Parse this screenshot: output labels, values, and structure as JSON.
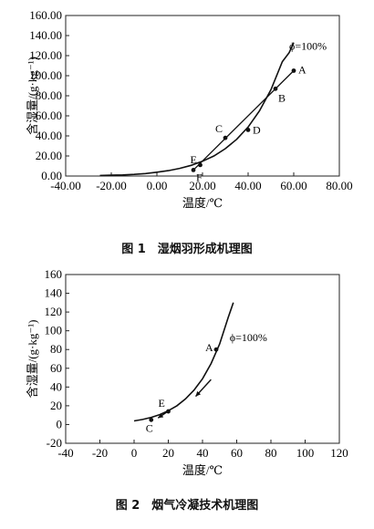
{
  "chart_data": [
    {
      "type": "line",
      "xlabel": "温度/℃",
      "ylabel": "含湿量/(g·kg⁻¹)",
      "xlim": [
        -40,
        80
      ],
      "ylim": [
        0,
        160
      ],
      "x_ticks": [
        "-40.00",
        "-20.00",
        "0.00",
        "20.00",
        "40.00",
        "60.00",
        "80.00"
      ],
      "y_ticks": [
        "0.00",
        "20.00",
        "40.00",
        "60.00",
        "80.00",
        "100.00",
        "120.00",
        "140.00",
        "160.00"
      ],
      "curve_label": "ϕ=100%",
      "curve": {
        "x": [
          -25,
          -20,
          -15,
          -10,
          -5,
          0,
          5,
          10,
          15,
          20,
          25,
          30,
          35,
          40,
          45,
          50,
          55,
          58,
          60
        ],
        "y": [
          0.5,
          0.8,
          1.1,
          1.6,
          2.5,
          3.8,
          5.4,
          7.6,
          10.6,
          14.7,
          20.0,
          27.3,
          36.6,
          48.8,
          65.0,
          86.0,
          114.0,
          123.0,
          133.0
        ]
      },
      "line": {
        "from": [
          16,
          6
        ],
        "to": [
          60,
          105
        ]
      },
      "points": [
        {
          "label": "A",
          "x": 60,
          "y": 105
        },
        {
          "label": "B",
          "x": 52,
          "y": 87
        },
        {
          "label": "C",
          "x": 30,
          "y": 38
        },
        {
          "label": "D",
          "x": 40,
          "y": 46
        },
        {
          "label": "E",
          "x": 19,
          "y": 11
        },
        {
          "label": "F",
          "x": 16,
          "y": 6
        }
      ],
      "caption": "图 1　湿烟羽形成机理图"
    },
    {
      "type": "line",
      "xlabel": "温度/℃",
      "ylabel": "含湿量/(g·kg⁻¹)",
      "xlim": [
        -40,
        120
      ],
      "ylim": [
        -20,
        160
      ],
      "x_ticks": [
        "-40",
        "-20",
        "0",
        "20",
        "40",
        "60",
        "80",
        "100",
        "120"
      ],
      "y_ticks": [
        "-20",
        "0",
        "20",
        "40",
        "60",
        "80",
        "100",
        "120",
        "140",
        "160"
      ],
      "curve_label": "ϕ=100%",
      "curve": {
        "x": [
          0,
          5,
          10,
          15,
          20,
          25,
          30,
          35,
          40,
          45,
          50,
          55,
          58
        ],
        "y": [
          3.8,
          5.4,
          7.6,
          10.6,
          14.7,
          20.0,
          27.3,
          36.6,
          48.8,
          65.0,
          86.0,
          114.0,
          130.0
        ]
      },
      "points": [
        {
          "label": "A",
          "x": 48,
          "y": 80
        },
        {
          "label": "E",
          "x": 20,
          "y": 14
        },
        {
          "label": "C",
          "x": 10,
          "y": 5
        }
      ],
      "arrows": [
        {
          "from": [
            45,
            48
          ],
          "to": [
            36,
            30
          ]
        },
        {
          "from": [
            19,
            13
          ],
          "to": [
            14,
            7
          ]
        }
      ],
      "caption": "图 2　烟气冷凝技术机理图"
    }
  ]
}
